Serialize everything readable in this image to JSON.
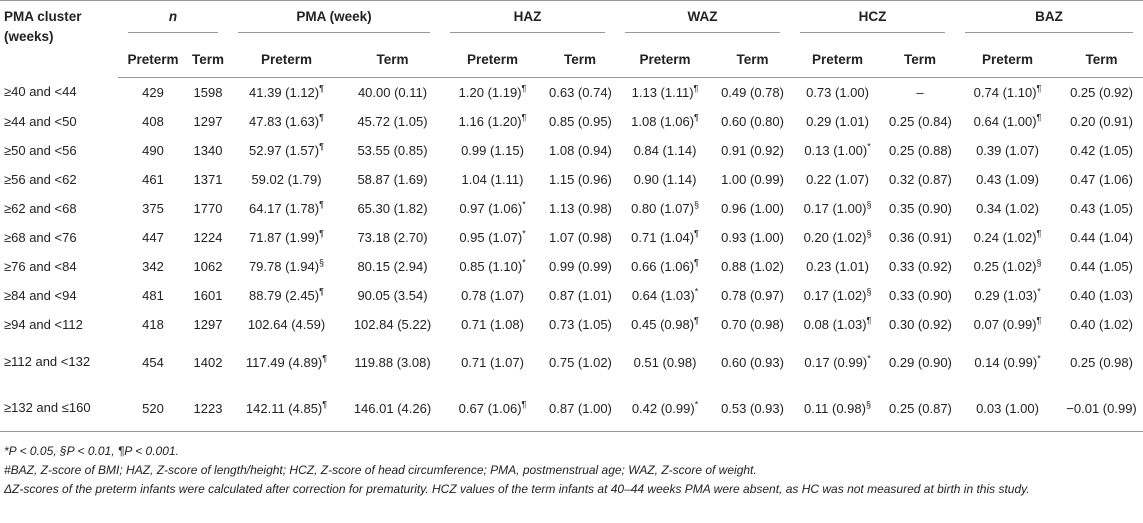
{
  "table": {
    "first_header": "PMA cluster (weeks)",
    "groups": [
      "n",
      "PMA (week)",
      "HAZ",
      "WAZ",
      "HCZ",
      "BAZ"
    ],
    "subheaders": [
      "Preterm",
      "Term",
      "Preterm",
      "Term",
      "Preterm",
      "Term",
      "Preterm",
      "Term",
      "Preterm",
      "Term",
      "Preterm",
      "Term"
    ],
    "rows": [
      [
        "≥40 and <44",
        "429",
        "1598",
        "41.39 (1.12)¶",
        "40.00 (0.11)",
        "1.20 (1.19)¶",
        "0.63 (0.74)",
        "1.13 (1.11)¶",
        "0.49 (0.78)",
        "0.73 (1.00)",
        "–",
        "0.74 (1.10)¶",
        "0.25 (0.92)"
      ],
      [
        "≥44 and <50",
        "408",
        "1297",
        "47.83 (1.63)¶",
        "45.72 (1.05)",
        "1.16 (1.20)¶",
        "0.85 (0.95)",
        "1.08 (1.06)¶",
        "0.60 (0.80)",
        "0.29 (1.01)",
        "0.25 (0.84)",
        "0.64 (1.00)¶",
        "0.20 (0.91)"
      ],
      [
        "≥50 and <56",
        "490",
        "1340",
        "52.97 (1.57)¶",
        "53.55 (0.85)",
        "0.99 (1.15)",
        "1.08 (0.94)",
        "0.84 (1.14)",
        "0.91 (0.92)",
        "0.13 (1.00)*",
        "0.25 (0.88)",
        "0.39 (1.07)",
        "0.42 (1.05)"
      ],
      [
        "≥56 and <62",
        "461",
        "1371",
        "59.02 (1.79)",
        "58.87 (1.69)",
        "1.04 (1.11)",
        "1.15 (0.96)",
        "0.90 (1.14)",
        "1.00 (0.99)",
        "0.22 (1.07)",
        "0.32 (0.87)",
        "0.43 (1.09)",
        "0.47 (1.06)"
      ],
      [
        "≥62 and <68",
        "375",
        "1770",
        "64.17 (1.78)¶",
        "65.30 (1.82)",
        "0.97 (1.06)*",
        "1.13 (0.98)",
        "0.80 (1.07)§",
        "0.96 (1.00)",
        "0.17 (1.00)§",
        "0.35 (0.90)",
        "0.34 (1.02)",
        "0.43 (1.05)"
      ],
      [
        "≥68 and <76",
        "447",
        "1224",
        "71.87 (1.99)¶",
        "73.18 (2.70)",
        "0.95 (1.07)*",
        "1.07 (0.98)",
        "0.71 (1.04)¶",
        "0.93 (1.00)",
        "0.20 (1.02)§",
        "0.36 (0.91)",
        "0.24 (1.02)¶",
        "0.44 (1.04)"
      ],
      [
        "≥76 and <84",
        "342",
        "1062",
        "79.78 (1.94)§",
        "80.15 (2.94)",
        "0.85 (1.10)*",
        "0.99 (0.99)",
        "0.66 (1.06)¶",
        "0.88 (1.02)",
        "0.23 (1.01)",
        "0.33 (0.92)",
        "0.25 (1.02)§",
        "0.44 (1.05)"
      ],
      [
        "≥84 and <94",
        "481",
        "1601",
        "88.79 (2.45)¶",
        "90.05 (3.54)",
        "0.78 (1.07)",
        "0.87 (1.01)",
        "0.64 (1.03)*",
        "0.78 (0.97)",
        "0.17 (1.02)§",
        "0.33 (0.90)",
        "0.29 (1.03)*",
        "0.40 (1.03)"
      ],
      [
        "≥94 and <112",
        "418",
        "1297",
        "102.64 (4.59)",
        "102.84 (5.22)",
        "0.71 (1.08)",
        "0.73 (1.05)",
        "0.45 (0.98)¶",
        "0.70 (0.98)",
        "0.08 (1.03)¶",
        "0.30 (0.92)",
        "0.07 (0.99)¶",
        "0.40 (1.02)"
      ],
      [
        "≥112 and <132",
        "454",
        "1402",
        "117.49 (4.89)¶",
        "119.88 (3.08)",
        "0.71 (1.07)",
        "0.75 (1.02)",
        "0.51 (0.98)",
        "0.60 (0.93)",
        "0.17 (0.99)*",
        "0.29 (0.90)",
        "0.14 (0.99)*",
        "0.25 (0.98)"
      ],
      [
        "≥132 and ≤160",
        "520",
        "1223",
        "142.11 (4.85)¶",
        "146.01 (4.26)",
        "0.67 (1.06)¶",
        "0.87 (1.00)",
        "0.42 (0.99)*",
        "0.53 (0.93)",
        "0.11 (0.98)§",
        "0.25 (0.87)",
        "0.03 (1.00)",
        "−0.01 (0.99)"
      ]
    ],
    "footnotes": [
      "*P < 0.05, §P < 0.01, ¶P < 0.001.",
      "#BAZ, Z-score of BMI; HAZ, Z-score of length/height; HCZ, Z-score of head circumference; PMA, postmenstrual age; WAZ, Z-score of weight.",
      "ΔZ-scores of the preterm infants were calculated after correction for prematurity. HCZ values of the term infants at 40–44 weeks PMA were absent, as HC was not measured at birth in this study."
    ]
  }
}
